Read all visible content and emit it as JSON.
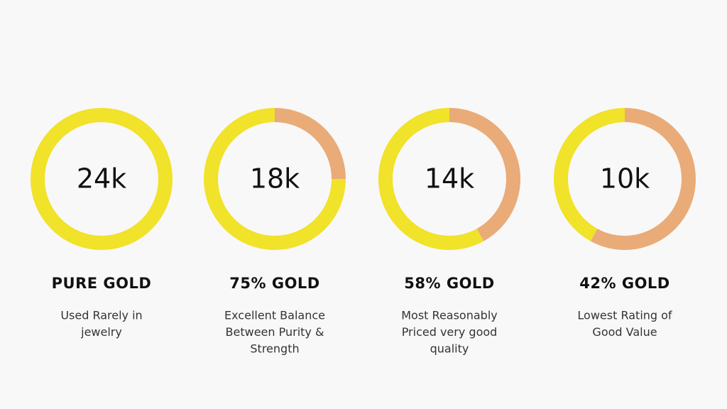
{
  "chart_data": {
    "type": "donut",
    "colors": {
      "gold": "#f1e22a",
      "other": "#e9ab78"
    },
    "items": [
      {
        "label": "24k",
        "title": "PURE GOLD",
        "description": [
          "Used Rarely in",
          "jewelry"
        ],
        "other": 0,
        "gold": 100
      },
      {
        "label": "18k",
        "title": "75% GOLD",
        "description": [
          "Excellent Balance",
          "Between Purity &",
          "Strength"
        ],
        "other": 25,
        "gold": 75
      },
      {
        "label": "14k",
        "title": "58% GOLD",
        "description": [
          "Most Reasonably",
          "Priced very good",
          "quality"
        ],
        "other": 42,
        "gold": 58
      },
      {
        "label": "10k",
        "title": "42% GOLD",
        "description": [
          "Lowest Rating of",
          "Good Value"
        ],
        "other": 58,
        "gold": 42
      }
    ]
  }
}
